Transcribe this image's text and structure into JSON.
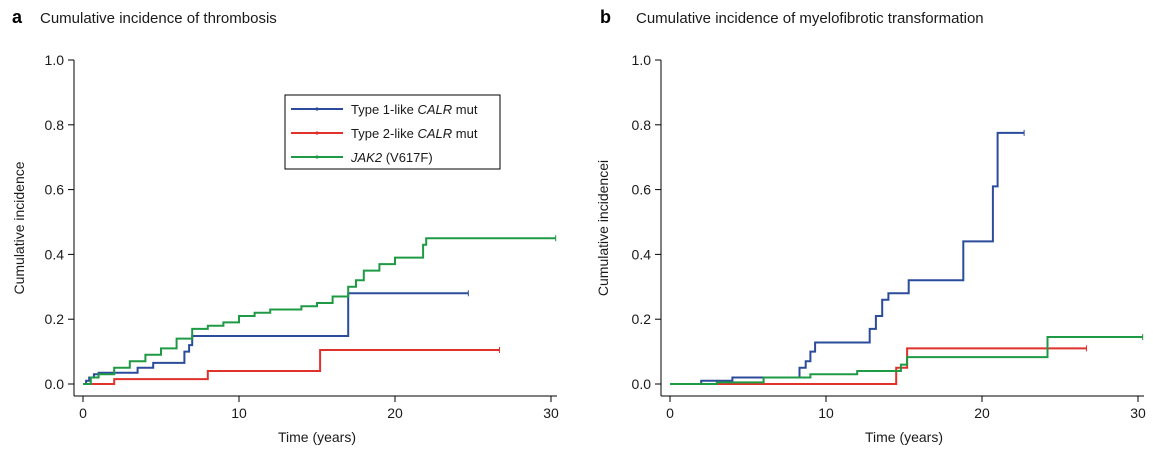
{
  "chart_data": [
    {
      "type": "line",
      "panel_label": "a",
      "title": "Cumulative incidence of thrombosis",
      "xlabel": "Time (years)",
      "ylabel": "Cumulative incidence",
      "xlim": [
        0,
        30
      ],
      "ylim": [
        0,
        1.0
      ],
      "xticks": [
        0,
        10,
        20,
        30
      ],
      "xtick_labels": [
        "0",
        "10",
        "20",
        "30"
      ],
      "yticks": [
        0,
        0.2,
        0.4,
        0.6,
        0.8,
        1.0
      ],
      "ytick_labels": [
        "0.0",
        "0.2",
        "0.4",
        "0.6",
        "0.8",
        "1.0"
      ],
      "legend": {
        "placement": "top-center",
        "entries": [
          {
            "parts": [
              {
                "t": "Type 1-like ",
                "i": false
              },
              {
                "t": "CALR",
                "i": true
              },
              {
                "t": " mut",
                "i": false
              }
            ],
            "color": "#2b4b9b"
          },
          {
            "parts": [
              {
                "t": "Type 2-like ",
                "i": false
              },
              {
                "t": "CALR",
                "i": true
              },
              {
                "t": " mut",
                "i": false
              }
            ],
            "color": "#e0312b"
          },
          {
            "parts": [
              {
                "t": "JAK2",
                "i": true
              },
              {
                "t": " (V617F)",
                "i": false
              }
            ],
            "color": "#1e9a45"
          }
        ]
      },
      "series": [
        {
          "color": "#2b4b9b",
          "x": [
            0,
            0.2,
            0.4,
            0.7,
            1.0,
            3.5,
            4.5,
            6.5,
            6.8,
            7.0,
            17.0,
            24.7
          ],
          "y": [
            0,
            0.01,
            0.02,
            0.03,
            0.035,
            0.05,
            0.065,
            0.1,
            0.12,
            0.148,
            0.28,
            0.28
          ]
        },
        {
          "color": "#e0312b",
          "x": [
            0,
            2.0,
            8.0,
            15.2,
            26.7
          ],
          "y": [
            0,
            0.015,
            0.04,
            0.105,
            0.105
          ]
        },
        {
          "color": "#1e9a45",
          "x": [
            0,
            0.5,
            1.0,
            2.0,
            3.0,
            4.0,
            5.0,
            6.0,
            7.0,
            8.0,
            9.0,
            10.0,
            11.0,
            12.0,
            13.0,
            14.0,
            15.0,
            16.0,
            17.0,
            17.5,
            18.0,
            19.0,
            20.0,
            21.0,
            21.8,
            22.0,
            30.3
          ],
          "y": [
            0,
            0.02,
            0.03,
            0.05,
            0.07,
            0.09,
            0.11,
            0.14,
            0.17,
            0.18,
            0.19,
            0.21,
            0.22,
            0.23,
            0.23,
            0.24,
            0.25,
            0.27,
            0.3,
            0.32,
            0.35,
            0.37,
            0.39,
            0.39,
            0.43,
            0.45,
            0.45
          ]
        }
      ]
    },
    {
      "type": "line",
      "panel_label": "b",
      "title": "Cumulative incidence of myelofibrotic transformation",
      "xlabel": "Time (years)",
      "ylabel": "Cumulative incidencei",
      "xlim": [
        0,
        30
      ],
      "ylim": [
        0,
        1.0
      ],
      "xticks": [
        0,
        10,
        20,
        30
      ],
      "xtick_labels": [
        "0",
        "10",
        "20",
        "30"
      ],
      "yticks": [
        0,
        0.2,
        0.4,
        0.6,
        0.8,
        1.0
      ],
      "ytick_labels": [
        "0.0",
        "0.2",
        "0.4",
        "0.6",
        "0.8",
        "1.0"
      ],
      "series": [
        {
          "color": "#2b4b9b",
          "x": [
            0,
            2.0,
            4.0,
            7.0,
            8.3,
            8.7,
            9.0,
            9.3,
            12.8,
            13.2,
            13.6,
            14.0,
            15.3,
            18.8,
            20.7,
            21.0,
            22.7
          ],
          "y": [
            0,
            0.01,
            0.02,
            0.02,
            0.05,
            0.07,
            0.1,
            0.128,
            0.17,
            0.21,
            0.26,
            0.28,
            0.32,
            0.44,
            0.61,
            0.775,
            0.775
          ]
        },
        {
          "color": "#e0312b",
          "x": [
            0,
            14.5,
            15.2,
            26.7
          ],
          "y": [
            0,
            0.05,
            0.11,
            0.11
          ]
        },
        {
          "color": "#1e9a45",
          "x": [
            0,
            3.0,
            6.0,
            9.0,
            12.0,
            14.8,
            15.2,
            24.2,
            30.3
          ],
          "y": [
            0,
            0.005,
            0.02,
            0.03,
            0.04,
            0.06,
            0.083,
            0.145,
            0.145
          ]
        }
      ]
    }
  ]
}
